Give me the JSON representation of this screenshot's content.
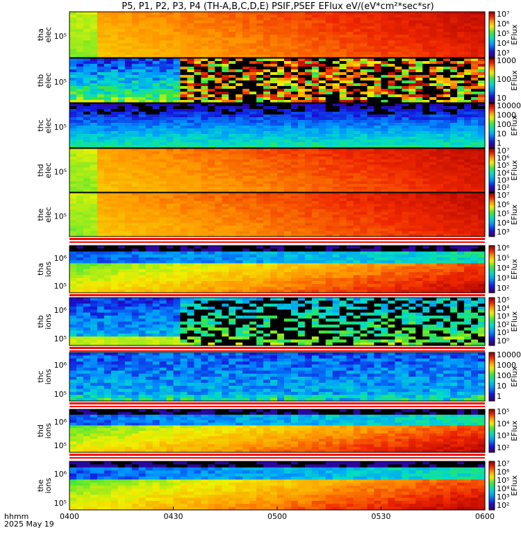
{
  "title": "P5, P1, P2, P3, P4 (TH-A,B,C,D,E) PSIF,PSEF EFlux eV/(eV*cm²*sec*sr)",
  "footer": {
    "axis_label": "hhmm",
    "date": "2025 May 19"
  },
  "colors": {
    "rainbow_low": "#3a0070",
    "rainbow_high": "#b00000",
    "separator": "#ff0000",
    "frame": "#000000"
  },
  "chart_data": {
    "type": "heatmap",
    "x_axis": {
      "start": "04:00",
      "end": "06:00",
      "ticks": [
        {
          "t": 0,
          "label": "0400"
        },
        {
          "t": 30,
          "label": "0430"
        },
        {
          "t": 60,
          "label": "0500"
        },
        {
          "t": 90,
          "label": "0530"
        },
        {
          "t": 120,
          "label": "0600"
        }
      ]
    },
    "panels": [
      {
        "id": "tha-elec",
        "ylabel": [
          "tha",
          "elec"
        ],
        "ytick": "10⁵",
        "cbar_label": "EFlux",
        "cbar_ticks": [
          "10⁷",
          "10⁶",
          "10⁵",
          "10⁴",
          "10³"
        ],
        "separator": false,
        "style": "elec-hot"
      },
      {
        "id": "thb-elec",
        "ylabel": [
          "thb",
          "elec"
        ],
        "ytick": "10⁵",
        "cbar_label": "EFlux",
        "cbar_ticks": [
          "1000",
          "100",
          "10"
        ],
        "separator": false,
        "style": "elec-noisy"
      },
      {
        "id": "thc-elec",
        "ylabel": [
          "thc",
          "elec"
        ],
        "ytick": "10⁵",
        "cbar_label": "EFlux",
        "cbar_ticks": [
          "10000",
          "1000",
          "100",
          "10",
          "1"
        ],
        "separator": false,
        "style": "elec-cool"
      },
      {
        "id": "thd-elec",
        "ylabel": [
          "thd",
          "elec"
        ],
        "ytick": "10⁵",
        "cbar_label": "EFlux",
        "cbar_ticks": [
          "10⁷",
          "10⁶",
          "10⁵",
          "10⁴",
          "10³",
          "10²"
        ],
        "separator": false,
        "style": "elec-hot"
      },
      {
        "id": "the-elec",
        "ylabel": [
          "the",
          "elec"
        ],
        "ytick": "10⁵",
        "cbar_label": "EFlux",
        "cbar_ticks": [
          "10⁷",
          "10⁶",
          "10⁵",
          "10⁴",
          "10³"
        ],
        "separator": true,
        "style": "elec-hot"
      },
      {
        "id": "tha-ions",
        "ylabel": [
          "tha",
          "ions"
        ],
        "ytick": "10⁵",
        "ytick2": "10⁶",
        "cbar_label": "EFlux",
        "cbar_ticks": [
          "10⁶",
          "10⁵",
          "10⁴",
          "10³",
          "10²"
        ],
        "separator": true,
        "style": "ions-warm"
      },
      {
        "id": "thb-ions",
        "ylabel": [
          "thb",
          "ions"
        ],
        "ytick": "10⁵",
        "ytick2": "10⁶",
        "cbar_label": "EFlux",
        "cbar_ticks": [
          "10⁵",
          "10⁴",
          "10³",
          "10²",
          "10¹",
          "10⁰"
        ],
        "separator": true,
        "style": "ions-noisy"
      },
      {
        "id": "thc-ions",
        "ylabel": [
          "thc",
          "ions"
        ],
        "ytick": "10⁵",
        "ytick2": "10⁶",
        "cbar_label": "EFlux",
        "cbar_ticks": [
          "10000",
          "1000",
          "100",
          "10",
          "1"
        ],
        "separator": true,
        "style": "ions-cool"
      },
      {
        "id": "thd-ions",
        "ylabel": [
          "thd",
          "ions"
        ],
        "ytick": "10⁵",
        "ytick2": "10⁶",
        "cbar_label": "EFlux",
        "cbar_ticks": [
          "10⁵",
          "10⁴",
          "10³",
          "10²"
        ],
        "separator": true,
        "style": "ions-warm"
      },
      {
        "id": "the-ions",
        "ylabel": [
          "the",
          "ions"
        ],
        "ytick": "10⁵",
        "ytick2": "10⁶",
        "cbar_label": "EFlux",
        "cbar_ticks": [
          "10⁷",
          "10⁶",
          "10⁵",
          "10⁴",
          "10³",
          "10²"
        ],
        "separator": false,
        "style": "ions-warm"
      }
    ]
  }
}
